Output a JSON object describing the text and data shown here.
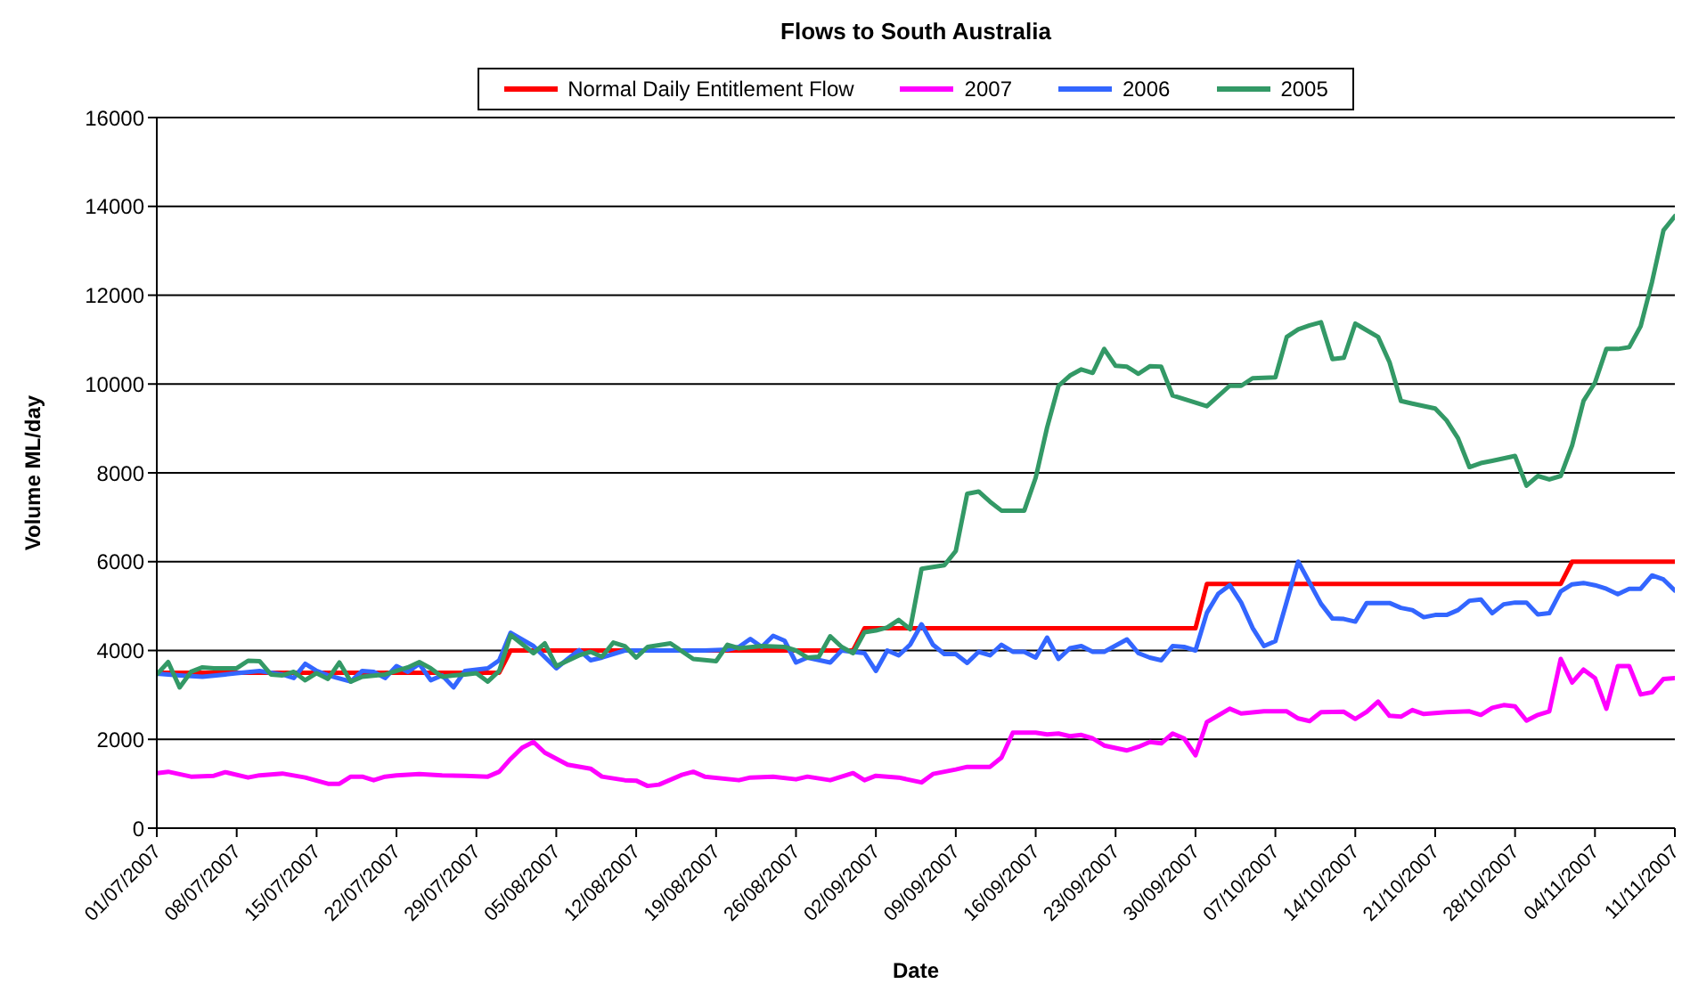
{
  "chart_data": {
    "type": "line",
    "title": "Flows to South Australia",
    "xlabel": "Date",
    "ylabel": "Volume ML/day",
    "xlim": [
      "2007-07-01",
      "2007-11-11"
    ],
    "xticks": [
      {
        "value": "2007-07-01",
        "label": "01/07/2007"
      },
      {
        "value": "2007-07-08",
        "label": "08/07/2007"
      },
      {
        "value": "2007-07-15",
        "label": "15/07/2007"
      },
      {
        "value": "2007-07-22",
        "label": "22/07/2007"
      },
      {
        "value": "2007-07-29",
        "label": "29/07/2007"
      },
      {
        "value": "2007-08-05",
        "label": "05/08/2007"
      },
      {
        "value": "2007-08-12",
        "label": "12/08/2007"
      },
      {
        "value": "2007-08-19",
        "label": "19/08/2007"
      },
      {
        "value": "2007-08-26",
        "label": "26/08/2007"
      },
      {
        "value": "2007-09-02",
        "label": "02/09/2007"
      },
      {
        "value": "2007-09-09",
        "label": "09/09/2007"
      },
      {
        "value": "2007-09-16",
        "label": "16/09/2007"
      },
      {
        "value": "2007-09-23",
        "label": "23/09/2007"
      },
      {
        "value": "2007-09-30",
        "label": "30/09/2007"
      },
      {
        "value": "2007-10-07",
        "label": "07/10/2007"
      },
      {
        "value": "2007-10-14",
        "label": "14/10/2007"
      },
      {
        "value": "2007-10-21",
        "label": "21/10/2007"
      },
      {
        "value": "2007-10-28",
        "label": "28/10/2007"
      },
      {
        "value": "2007-11-04",
        "label": "04/11/2007"
      },
      {
        "value": "2007-11-11",
        "label": "11/11/2007"
      }
    ],
    "ylim": [
      0,
      16000
    ],
    "yticks": [
      0,
      2000,
      4000,
      6000,
      8000,
      10000,
      12000,
      14000,
      16000
    ],
    "grid": "y",
    "legend": "top",
    "marker": "none",
    "line_style": "solid",
    "series": [
      {
        "name": "Normal Daily Entitlement Flow",
        "color": "#ff0000",
        "x": [
          "2007-07-01",
          "2007-07-31",
          "2007-08-01",
          "2007-08-31",
          "2007-09-01",
          "2007-09-30",
          "2007-10-01",
          "2007-11-01",
          "2007-11-02",
          "2007-11-11"
        ],
        "values": [
          3500,
          3500,
          4000,
          4000,
          4500,
          4500,
          5500,
          5500,
          6000,
          6000
        ]
      },
      {
        "name": "2007",
        "color": "#ff00ff",
        "x": [
          "2007-07-01",
          "2007-07-02",
          "2007-07-04",
          "2007-07-06",
          "2007-07-07",
          "2007-07-09",
          "2007-07-10",
          "2007-07-12",
          "2007-07-14",
          "2007-07-16",
          "2007-07-17",
          "2007-07-18",
          "2007-07-19",
          "2007-07-20",
          "2007-07-21",
          "2007-07-22",
          "2007-07-24",
          "2007-07-26",
          "2007-07-28",
          "2007-07-30",
          "2007-07-31",
          "2007-08-01",
          "2007-08-02",
          "2007-08-03",
          "2007-08-04",
          "2007-08-06",
          "2007-08-08",
          "2007-08-09",
          "2007-08-11",
          "2007-08-12",
          "2007-08-13",
          "2007-08-14",
          "2007-08-16",
          "2007-08-17",
          "2007-08-18",
          "2007-08-21",
          "2007-08-22",
          "2007-08-24",
          "2007-08-26",
          "2007-08-27",
          "2007-08-29",
          "2007-08-31",
          "2007-09-01",
          "2007-09-02",
          "2007-09-04",
          "2007-09-06",
          "2007-09-07",
          "2007-09-09",
          "2007-09-10",
          "2007-09-12",
          "2007-09-13",
          "2007-09-14",
          "2007-09-16",
          "2007-09-17",
          "2007-09-18",
          "2007-09-19",
          "2007-09-20",
          "2007-09-21",
          "2007-09-22",
          "2007-09-24",
          "2007-09-25",
          "2007-09-26",
          "2007-09-27",
          "2007-09-28",
          "2007-09-29",
          "2007-09-30",
          "2007-10-01",
          "2007-10-02",
          "2007-10-03",
          "2007-10-04",
          "2007-10-06",
          "2007-10-08",
          "2007-10-09",
          "2007-10-10",
          "2007-10-11",
          "2007-10-13",
          "2007-10-14",
          "2007-10-15",
          "2007-10-16",
          "2007-10-17",
          "2007-10-18",
          "2007-10-19",
          "2007-10-20",
          "2007-10-22",
          "2007-10-24",
          "2007-10-25",
          "2007-10-26",
          "2007-10-27",
          "2007-10-28",
          "2007-10-29",
          "2007-10-30",
          "2007-10-31",
          "2007-11-01",
          "2007-11-02",
          "2007-11-03",
          "2007-11-04",
          "2007-11-05",
          "2007-11-06",
          "2007-11-07",
          "2007-11-08",
          "2007-11-09",
          "2007-11-10",
          "2007-11-11"
        ],
        "values": [
          1240,
          1270,
          1160,
          1180,
          1260,
          1140,
          1190,
          1230,
          1140,
          1000,
          1000,
          1160,
          1160,
          1080,
          1160,
          1190,
          1220,
          1190,
          1180,
          1160,
          1270,
          1560,
          1810,
          1940,
          1700,
          1430,
          1340,
          1160,
          1080,
          1070,
          950,
          980,
          1200,
          1270,
          1160,
          1080,
          1140,
          1160,
          1100,
          1160,
          1080,
          1240,
          1080,
          1180,
          1140,
          1030,
          1220,
          1320,
          1380,
          1380,
          1590,
          2150,
          2150,
          2110,
          2130,
          2070,
          2100,
          2020,
          1860,
          1750,
          1830,
          1940,
          1910,
          2130,
          2020,
          1640,
          2390,
          2540,
          2690,
          2580,
          2630,
          2630,
          2470,
          2410,
          2610,
          2620,
          2460,
          2620,
          2850,
          2530,
          2510,
          2660,
          2570,
          2610,
          2630,
          2550,
          2710,
          2770,
          2740,
          2420,
          2550,
          2630,
          3810,
          3280,
          3570,
          3380,
          2690,
          3650,
          3650,
          3010,
          3060,
          3360,
          3380
        ]
      },
      {
        "name": "2006",
        "color": "#3366ff",
        "x": [
          "2007-07-01",
          "2007-07-03",
          "2007-07-05",
          "2007-07-07",
          "2007-07-08",
          "2007-07-10",
          "2007-07-12",
          "2007-07-13",
          "2007-07-14",
          "2007-07-15",
          "2007-07-16",
          "2007-07-18",
          "2007-07-19",
          "2007-07-20",
          "2007-07-21",
          "2007-07-22",
          "2007-07-23",
          "2007-07-24",
          "2007-07-25",
          "2007-07-26",
          "2007-07-27",
          "2007-07-28",
          "2007-07-30",
          "2007-07-31",
          "2007-08-01",
          "2007-08-03",
          "2007-08-05",
          "2007-08-06",
          "2007-08-07",
          "2007-08-08",
          "2007-08-09",
          "2007-08-11",
          "2007-08-12",
          "2007-08-14",
          "2007-08-15",
          "2007-08-17",
          "2007-08-18",
          "2007-08-20",
          "2007-08-21",
          "2007-08-22",
          "2007-08-23",
          "2007-08-24",
          "2007-08-25",
          "2007-08-26",
          "2007-08-27",
          "2007-08-29",
          "2007-08-30",
          "2007-08-31",
          "2007-09-01",
          "2007-09-02",
          "2007-09-03",
          "2007-09-04",
          "2007-09-05",
          "2007-09-06",
          "2007-09-07",
          "2007-09-08",
          "2007-09-09",
          "2007-09-10",
          "2007-09-11",
          "2007-09-12",
          "2007-09-13",
          "2007-09-14",
          "2007-09-15",
          "2007-09-16",
          "2007-09-17",
          "2007-09-18",
          "2007-09-19",
          "2007-09-20",
          "2007-09-21",
          "2007-09-22",
          "2007-09-24",
          "2007-09-25",
          "2007-09-26",
          "2007-09-27",
          "2007-09-28",
          "2007-09-29",
          "2007-09-30",
          "2007-10-01",
          "2007-10-02",
          "2007-10-03",
          "2007-10-04",
          "2007-10-05",
          "2007-10-06",
          "2007-10-07",
          "2007-10-09",
          "2007-10-11",
          "2007-10-12",
          "2007-10-13",
          "2007-10-14",
          "2007-10-15",
          "2007-10-17",
          "2007-10-18",
          "2007-10-19",
          "2007-10-20",
          "2007-10-21",
          "2007-10-22",
          "2007-10-23",
          "2007-10-24",
          "2007-10-25",
          "2007-10-26",
          "2007-10-27",
          "2007-10-28",
          "2007-10-29",
          "2007-10-30",
          "2007-10-31",
          "2007-11-01",
          "2007-11-02",
          "2007-11-03",
          "2007-11-04",
          "2007-11-05",
          "2007-11-06",
          "2007-11-07",
          "2007-11-08",
          "2007-11-09",
          "2007-11-10",
          "2007-11-11"
        ],
        "values": [
          3480,
          3440,
          3410,
          3460,
          3490,
          3540,
          3460,
          3380,
          3700,
          3540,
          3440,
          3300,
          3540,
          3520,
          3380,
          3650,
          3520,
          3700,
          3330,
          3440,
          3170,
          3540,
          3600,
          3780,
          4400,
          4100,
          3600,
          3810,
          4010,
          3780,
          3840,
          4000,
          4000,
          4000,
          4000,
          4000,
          4000,
          4020,
          4080,
          4260,
          4080,
          4330,
          4220,
          3730,
          3840,
          3730,
          4000,
          3970,
          3940,
          3540,
          4000,
          3890,
          4130,
          4590,
          4130,
          3920,
          3920,
          3720,
          3970,
          3890,
          4130,
          3970,
          3970,
          3840,
          4290,
          3810,
          4050,
          4100,
          3970,
          3970,
          4250,
          3940,
          3840,
          3780,
          4100,
          4080,
          4000,
          4850,
          5280,
          5470,
          5080,
          4510,
          4100,
          4210,
          6000,
          5050,
          4720,
          4710,
          4650,
          5070,
          5070,
          4960,
          4910,
          4750,
          4800,
          4800,
          4910,
          5120,
          5150,
          4840,
          5040,
          5080,
          5080,
          4810,
          4840,
          5330,
          5490,
          5520,
          5470,
          5390,
          5270,
          5390,
          5390,
          5690,
          5600,
          5350
        ]
      },
      {
        "name": "2005",
        "color": "#339966",
        "x": [
          "2007-07-01",
          "2007-07-02",
          "2007-07-03",
          "2007-07-04",
          "2007-07-05",
          "2007-07-06",
          "2007-07-08",
          "2007-07-09",
          "2007-07-10",
          "2007-07-11",
          "2007-07-12",
          "2007-07-13",
          "2007-07-14",
          "2007-07-15",
          "2007-07-16",
          "2007-07-17",
          "2007-07-18",
          "2007-07-19",
          "2007-07-21",
          "2007-07-22",
          "2007-07-23",
          "2007-07-24",
          "2007-07-25",
          "2007-07-26",
          "2007-07-27",
          "2007-07-28",
          "2007-07-29",
          "2007-07-30",
          "2007-07-31",
          "2007-08-01",
          "2007-08-03",
          "2007-08-04",
          "2007-08-05",
          "2007-08-07",
          "2007-08-08",
          "2007-08-09",
          "2007-08-10",
          "2007-08-11",
          "2007-08-12",
          "2007-08-13",
          "2007-08-15",
          "2007-08-17",
          "2007-08-19",
          "2007-08-20",
          "2007-08-21",
          "2007-08-23",
          "2007-08-25",
          "2007-08-26",
          "2007-08-27",
          "2007-08-28",
          "2007-08-29",
          "2007-08-30",
          "2007-08-31",
          "2007-09-01",
          "2007-09-02",
          "2007-09-03",
          "2007-09-04",
          "2007-09-05",
          "2007-09-06",
          "2007-09-08",
          "2007-09-09",
          "2007-09-10",
          "2007-09-11",
          "2007-09-12",
          "2007-09-13",
          "2007-09-15",
          "2007-09-16",
          "2007-09-17",
          "2007-09-18",
          "2007-09-19",
          "2007-09-20",
          "2007-09-21",
          "2007-09-22",
          "2007-09-23",
          "2007-09-24",
          "2007-09-25",
          "2007-09-26",
          "2007-09-27",
          "2007-09-28",
          "2007-09-29",
          "2007-10-01",
          "2007-10-03",
          "2007-10-04",
          "2007-10-05",
          "2007-10-07",
          "2007-10-08",
          "2007-10-09",
          "2007-10-10",
          "2007-10-11",
          "2007-10-12",
          "2007-10-13",
          "2007-10-14",
          "2007-10-16",
          "2007-10-17",
          "2007-10-18",
          "2007-10-19",
          "2007-10-21",
          "2007-10-22",
          "2007-10-23",
          "2007-10-24",
          "2007-10-25",
          "2007-10-26",
          "2007-10-28",
          "2007-10-29",
          "2007-10-30",
          "2007-10-31",
          "2007-11-01",
          "2007-11-02",
          "2007-11-03",
          "2007-11-04",
          "2007-11-05",
          "2007-11-06",
          "2007-11-07",
          "2007-11-08",
          "2007-11-09",
          "2007-11-10",
          "2007-11-11"
        ],
        "values": [
          3460,
          3740,
          3170,
          3520,
          3620,
          3600,
          3600,
          3770,
          3760,
          3460,
          3440,
          3520,
          3330,
          3490,
          3360,
          3730,
          3300,
          3410,
          3460,
          3540,
          3620,
          3740,
          3600,
          3410,
          3440,
          3460,
          3490,
          3300,
          3540,
          4350,
          3940,
          4160,
          3650,
          3890,
          3970,
          3860,
          4180,
          4100,
          3840,
          4080,
          4160,
          3810,
          3760,
          4130,
          4050,
          4100,
          4080,
          4000,
          3840,
          3860,
          4320,
          4080,
          3940,
          4410,
          4450,
          4520,
          4690,
          4480,
          5840,
          5920,
          6240,
          7530,
          7580,
          7350,
          7150,
          7150,
          7890,
          9020,
          9960,
          10190,
          10330,
          10250,
          10790,
          10410,
          10390,
          10230,
          10400,
          10390,
          9740,
          9660,
          9500,
          9960,
          9960,
          10130,
          10150,
          11060,
          11230,
          11320,
          11390,
          10560,
          10590,
          11360,
          11060,
          10490,
          9620,
          9560,
          9450,
          9180,
          8780,
          8130,
          8220,
          8270,
          8380,
          7710,
          7930,
          7850,
          7930,
          8620,
          9620,
          10030,
          10790,
          10790,
          10830,
          11300,
          12300,
          13460,
          13780
        ]
      }
    ]
  }
}
